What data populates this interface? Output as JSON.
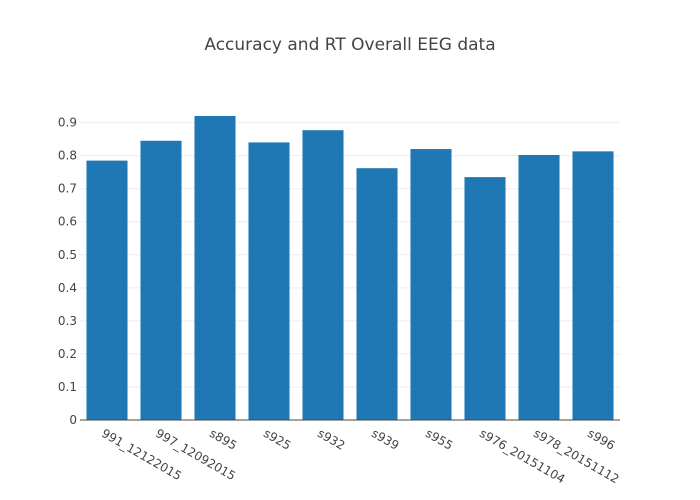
{
  "chart_data": {
    "type": "bar",
    "title": "Accuracy and RT Overall EEG data",
    "xlabel": "",
    "ylabel": "",
    "categories": [
      "991_12122015",
      "997_12092015",
      "s895",
      "s925",
      "s932",
      "s939",
      "s955",
      "s976_20151104",
      "s978_20151112",
      "s996"
    ],
    "values": [
      0.785,
      0.845,
      0.92,
      0.84,
      0.877,
      0.762,
      0.82,
      0.735,
      0.802,
      0.813
    ],
    "ylim": [
      0,
      0.92
    ],
    "yticks": [
      "0",
      "0.1",
      "0.2",
      "0.3",
      "0.4",
      "0.5",
      "0.6",
      "0.7",
      "0.8",
      "0.9"
    ],
    "grid": true,
    "legend": "none",
    "colors": {
      "bar": "#1f77b4",
      "text": "#444444",
      "grid": "#eeeeee"
    }
  }
}
